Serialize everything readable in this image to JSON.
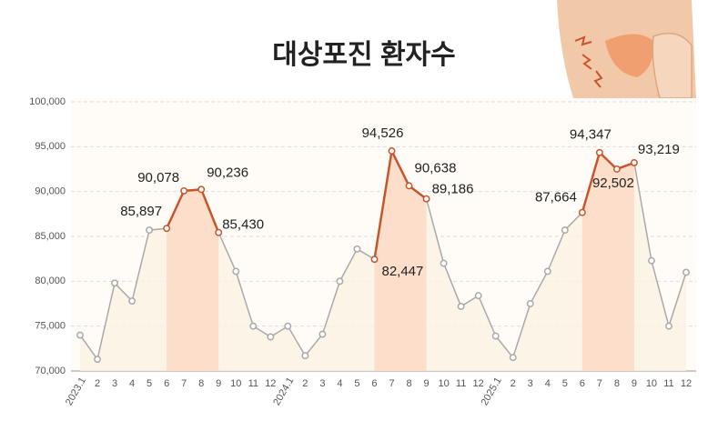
{
  "chart_data": {
    "type": "line",
    "title": "대상포진 환자수",
    "categories": [
      "2023.1",
      "2",
      "3",
      "4",
      "5",
      "6",
      "7",
      "8",
      "9",
      "10",
      "11",
      "12",
      "2024.1",
      "2",
      "3",
      "4",
      "5",
      "6",
      "7",
      "8",
      "9",
      "10",
      "11",
      "12",
      "2025.1",
      "2",
      "3",
      "4",
      "5",
      "6",
      "7",
      "8",
      "9",
      "10",
      "11",
      "12"
    ],
    "series": [
      {
        "color": "#a9a9a9",
        "highlight_color": "#c8552a",
        "values": [
          74000,
          71300,
          79800,
          77800,
          85700,
          85897,
          90078,
          90236,
          85430,
          81100,
          75000,
          73800,
          75000,
          71700,
          74100,
          80000,
          83600,
          82447,
          94526,
          90638,
          89186,
          82000,
          77200,
          78400,
          73900,
          71500,
          77500,
          81100,
          85700,
          87664,
          94347,
          92502,
          93219,
          82300,
          75000,
          81000
        ],
        "value_labels": [
          null,
          null,
          null,
          null,
          null,
          "85,897",
          "90,078",
          "90,236",
          "85,430",
          null,
          null,
          null,
          null,
          null,
          null,
          null,
          null,
          "82,447",
          "94,526",
          "90,638",
          "89,186",
          null,
          null,
          null,
          null,
          null,
          null,
          null,
          null,
          "87,664",
          "94,347",
          "92,502",
          "93,219",
          null,
          null,
          null
        ]
      }
    ],
    "ylim": [
      70000,
      100000
    ],
    "yticks": [
      {
        "value": 70000,
        "label": "70,000"
      },
      {
        "value": 75000,
        "label": "75,000"
      },
      {
        "value": 80000,
        "label": "80,000"
      },
      {
        "value": 85000,
        "label": "85,000"
      },
      {
        "value": 90000,
        "label": "90,000"
      },
      {
        "value": 95000,
        "label": "95,000"
      },
      {
        "value": 100000,
        "label": "100,000"
      }
    ],
    "grid": true
  }
}
